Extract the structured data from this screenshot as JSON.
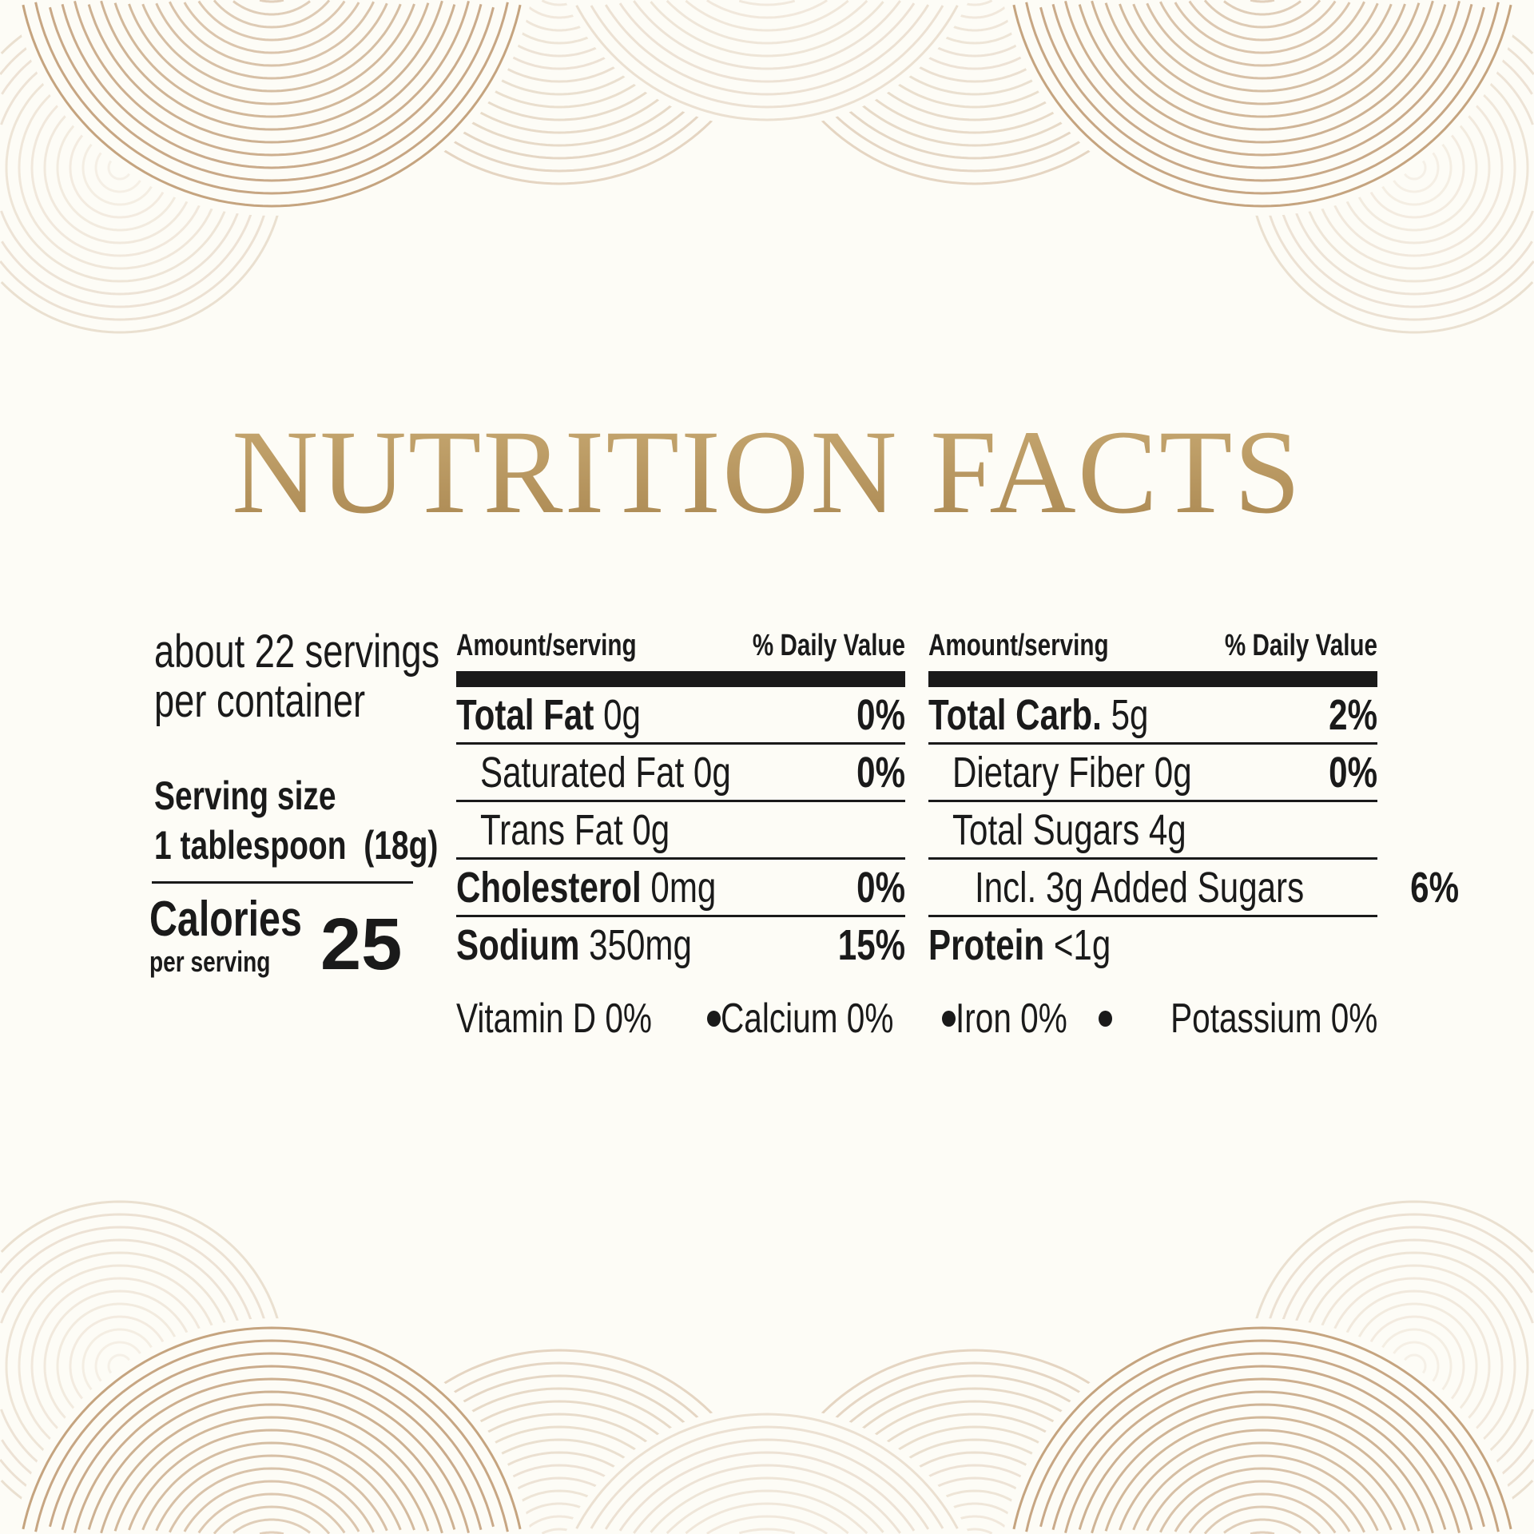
{
  "title": "NUTRITION FACTS",
  "colors": {
    "title_gold": "#b8955f",
    "background": "#fdfcf6",
    "ink": "#1a1a1a",
    "ornament": "#b58a5e"
  },
  "servings": {
    "line1": "about 22 servings",
    "line2": "per container"
  },
  "serving_size": {
    "label": "Serving size",
    "value": "1 tablespoon  (18g)"
  },
  "calories": {
    "label": "Calories",
    "sub": "per serving",
    "value": "25"
  },
  "left_panel": {
    "header": {
      "amount": "Amount/serving",
      "dv": "% Daily Value"
    },
    "rows": [
      {
        "name": "Total Fat",
        "amount": "0g",
        "dv": "0%"
      },
      {
        "name": "Saturated Fat 0g",
        "amount": "",
        "dv": "0%"
      },
      {
        "name": "Trans Fat 0g",
        "amount": "",
        "dv": ""
      },
      {
        "name": "Cholesterol",
        "amount": "0mg",
        "dv": "0%"
      },
      {
        "name": "Sodium",
        "amount": "350mg",
        "dv": "15%"
      }
    ]
  },
  "right_panel": {
    "header": {
      "amount": "Amount/serving",
      "dv": "% Daily Value"
    },
    "rows": [
      {
        "name": "Total Carb.",
        "amount": "5g",
        "dv": "2%"
      },
      {
        "name": "Dietary Fiber 0g",
        "amount": "",
        "dv": "0%"
      },
      {
        "name": "Total Sugars 4g",
        "amount": "",
        "dv": ""
      },
      {
        "name": "Incl. 3g Added Sugars",
        "amount": "",
        "dv": "6%"
      },
      {
        "name": "Protein",
        "amount": "<1g",
        "dv": ""
      }
    ]
  },
  "vitamins": [
    "Vitamin D 0%",
    "Calcium 0%",
    "Iron 0%",
    "Potassium 0%"
  ]
}
